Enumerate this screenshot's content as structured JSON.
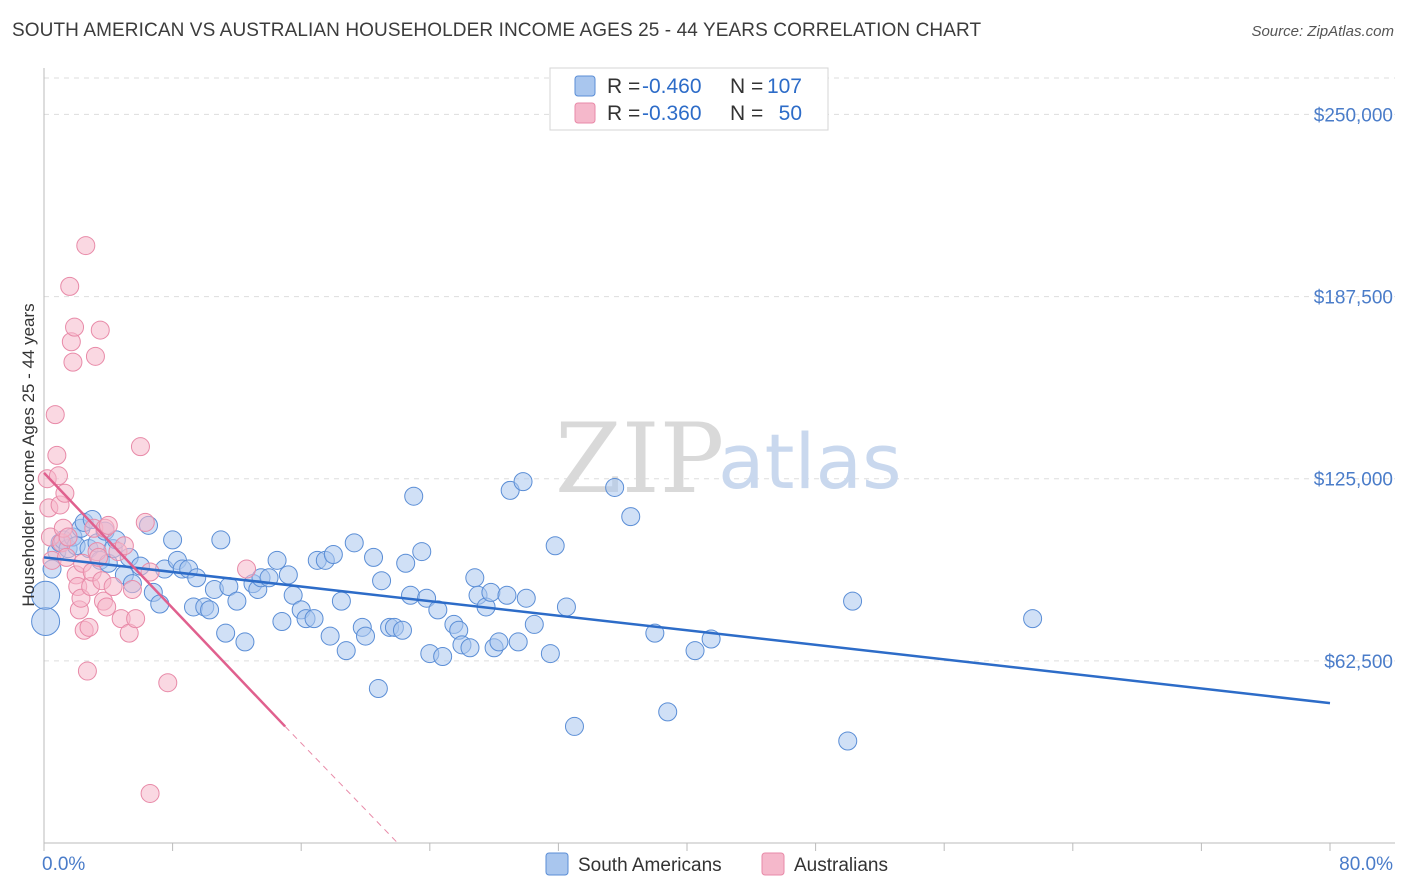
{
  "header": {
    "title": "SOUTH AMERICAN VS AUSTRALIAN HOUSEHOLDER INCOME AGES 25 - 44 YEARS CORRELATION CHART",
    "source": "Source: ZipAtlas.com"
  },
  "watermark": {
    "zip": "ZIP",
    "atlas": "atlas"
  },
  "colors": {
    "blue_fill": "#a9c6ee",
    "blue_stroke": "#5b8ed6",
    "blue_line": "#2d6cc8",
    "pink_fill": "#f5b8cb",
    "pink_stroke": "#e88aa8",
    "pink_line": "#e0608e",
    "grid": "#dddddd",
    "axis_label": "#4a7cc9"
  },
  "chart_data": {
    "type": "scatter",
    "title": "SOUTH AMERICAN VS AUSTRALIAN HOUSEHOLDER INCOME AGES 25 - 44 YEARS CORRELATION CHART",
    "xlabel": "",
    "ylabel": "Householder Income Ages 25 - 44 years",
    "xlim": [
      0,
      80
    ],
    "ylim": [
      0,
      262500
    ],
    "x_tick_labels": [
      "0.0%",
      "80.0%"
    ],
    "y_ticks": [
      62500,
      125000,
      187500,
      250000
    ],
    "y_tick_labels": [
      "$62,500",
      "$125,000",
      "$187,500",
      "$250,000"
    ],
    "grid": true,
    "legend": [
      {
        "name": "South Americans",
        "r_label": "R =",
        "r_value": "-0.460",
        "n_label": "N =",
        "n_value": "107"
      },
      {
        "name": "Australians",
        "r_label": "R =",
        "r_value": "-0.360",
        "n_label": "N =",
        "n_value": "50"
      }
    ],
    "series": [
      {
        "name": "South Americans",
        "trend": {
          "x": [
            0,
            80
          ],
          "y": [
            98000,
            48000
          ]
        },
        "points": [
          [
            0.1,
            76000
          ],
          [
            0.1,
            85000
          ],
          [
            0.5,
            94000
          ],
          [
            0.8,
            100000
          ],
          [
            1.0,
            103000
          ],
          [
            1.2,
            104000
          ],
          [
            1.5,
            101000
          ],
          [
            1.8,
            105000
          ],
          [
            2.0,
            102000
          ],
          [
            2.3,
            108000
          ],
          [
            2.5,
            110000
          ],
          [
            2.8,
            101000
          ],
          [
            3.0,
            111000
          ],
          [
            3.3,
            103000
          ],
          [
            3.5,
            97000
          ],
          [
            3.8,
            107000
          ],
          [
            4.0,
            96000
          ],
          [
            4.3,
            101000
          ],
          [
            4.5,
            104000
          ],
          [
            5.0,
            92000
          ],
          [
            5.3,
            98000
          ],
          [
            5.5,
            89000
          ],
          [
            6.0,
            95000
          ],
          [
            6.5,
            109000
          ],
          [
            6.8,
            86000
          ],
          [
            7.2,
            82000
          ],
          [
            7.5,
            94000
          ],
          [
            8.0,
            104000
          ],
          [
            8.3,
            97000
          ],
          [
            8.6,
            94000
          ],
          [
            9.0,
            94000
          ],
          [
            9.3,
            81000
          ],
          [
            9.5,
            91000
          ],
          [
            10.0,
            81000
          ],
          [
            10.3,
            80000
          ],
          [
            10.6,
            87000
          ],
          [
            11.0,
            104000
          ],
          [
            11.3,
            72000
          ],
          [
            11.5,
            88000
          ],
          [
            12.0,
            83000
          ],
          [
            12.5,
            69000
          ],
          [
            13.0,
            89000
          ],
          [
            13.3,
            87000
          ],
          [
            13.5,
            91000
          ],
          [
            14.0,
            91000
          ],
          [
            14.5,
            97000
          ],
          [
            14.8,
            76000
          ],
          [
            15.2,
            92000
          ],
          [
            15.5,
            85000
          ],
          [
            16.0,
            80000
          ],
          [
            16.3,
            77000
          ],
          [
            16.8,
            77000
          ],
          [
            17.0,
            97000
          ],
          [
            17.5,
            97000
          ],
          [
            17.8,
            71000
          ],
          [
            18.0,
            99000
          ],
          [
            18.5,
            83000
          ],
          [
            18.8,
            66000
          ],
          [
            19.3,
            103000
          ],
          [
            19.8,
            74000
          ],
          [
            20.0,
            71000
          ],
          [
            20.5,
            98000
          ],
          [
            20.8,
            53000
          ],
          [
            21.0,
            90000
          ],
          [
            21.5,
            74000
          ],
          [
            21.8,
            74000
          ],
          [
            22.3,
            73000
          ],
          [
            22.5,
            96000
          ],
          [
            22.8,
            85000
          ],
          [
            23.0,
            119000
          ],
          [
            23.5,
            100000
          ],
          [
            23.8,
            84000
          ],
          [
            24.0,
            65000
          ],
          [
            24.5,
            80000
          ],
          [
            24.8,
            64000
          ],
          [
            25.5,
            75000
          ],
          [
            25.8,
            73000
          ],
          [
            26.0,
            68000
          ],
          [
            26.5,
            67000
          ],
          [
            26.8,
            91000
          ],
          [
            27.0,
            85000
          ],
          [
            27.5,
            81000
          ],
          [
            27.8,
            86000
          ],
          [
            28.0,
            67000
          ],
          [
            28.3,
            69000
          ],
          [
            28.8,
            85000
          ],
          [
            29.0,
            121000
          ],
          [
            29.5,
            69000
          ],
          [
            29.8,
            124000
          ],
          [
            30.0,
            84000
          ],
          [
            30.5,
            75000
          ],
          [
            31.5,
            65000
          ],
          [
            31.8,
            102000
          ],
          [
            32.5,
            81000
          ],
          [
            33.0,
            40000
          ],
          [
            35.5,
            122000
          ],
          [
            36.5,
            112000
          ],
          [
            38.0,
            72000
          ],
          [
            38.8,
            45000
          ],
          [
            40.5,
            66000
          ],
          [
            41.5,
            70000
          ],
          [
            50.0,
            35000
          ],
          [
            50.3,
            83000
          ],
          [
            61.5,
            77000
          ]
        ]
      },
      {
        "name": "Australians",
        "trend": {
          "x": [
            0,
            15
          ],
          "y": [
            127000,
            40000
          ]
        },
        "trend_dashed": {
          "x": [
            15,
            22
          ],
          "y": [
            40000,
            0
          ]
        },
        "points": [
          [
            0.2,
            125000
          ],
          [
            0.3,
            115000
          ],
          [
            0.4,
            105000
          ],
          [
            0.5,
            97000
          ],
          [
            0.7,
            147000
          ],
          [
            0.8,
            133000
          ],
          [
            0.9,
            126000
          ],
          [
            1.0,
            116000
          ],
          [
            1.1,
            103000
          ],
          [
            1.2,
            108000
          ],
          [
            1.3,
            120000
          ],
          [
            1.4,
            98000
          ],
          [
            1.5,
            105000
          ],
          [
            1.6,
            191000
          ],
          [
            1.7,
            172000
          ],
          [
            1.8,
            165000
          ],
          [
            1.9,
            177000
          ],
          [
            2.0,
            92000
          ],
          [
            2.1,
            88000
          ],
          [
            2.2,
            80000
          ],
          [
            2.3,
            84000
          ],
          [
            2.4,
            96000
          ],
          [
            2.5,
            73000
          ],
          [
            2.6,
            205000
          ],
          [
            2.7,
            59000
          ],
          [
            2.8,
            74000
          ],
          [
            2.9,
            88000
          ],
          [
            3.0,
            93000
          ],
          [
            3.1,
            108000
          ],
          [
            3.2,
            167000
          ],
          [
            3.3,
            100000
          ],
          [
            3.4,
            98000
          ],
          [
            3.5,
            176000
          ],
          [
            3.6,
            90000
          ],
          [
            3.7,
            83000
          ],
          [
            3.8,
            108000
          ],
          [
            3.9,
            81000
          ],
          [
            4.0,
            109000
          ],
          [
            4.3,
            88000
          ],
          [
            4.6,
            100000
          ],
          [
            4.8,
            77000
          ],
          [
            5.0,
            102000
          ],
          [
            5.3,
            72000
          ],
          [
            5.5,
            87000
          ],
          [
            5.7,
            77000
          ],
          [
            6.0,
            136000
          ],
          [
            6.3,
            110000
          ],
          [
            6.6,
            93000
          ],
          [
            7.7,
            55000
          ],
          [
            6.6,
            17000
          ],
          [
            12.6,
            94000
          ]
        ]
      }
    ]
  },
  "bottom_legend": {
    "series1": "South Americans",
    "series2": "Australians"
  }
}
